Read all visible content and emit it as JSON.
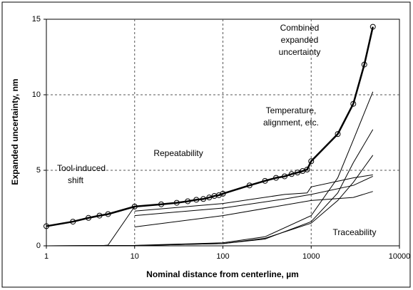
{
  "chart_data": {
    "type": "line",
    "xscale": "log",
    "xlabel": "Nominal distance from centerline, µm",
    "ylabel": "Expanded uncertainty, nm",
    "xlim": [
      1,
      10000
    ],
    "xticks": [
      1,
      10,
      100,
      1000,
      10000
    ],
    "ylim": [
      0,
      15
    ],
    "yticks": [
      0,
      5,
      10,
      15
    ],
    "grid": true,
    "annotations": {
      "combined": [
        "Combined",
        "expanded",
        "uncertainty"
      ],
      "temperature": [
        "Temperature,",
        "alignment, etc."
      ],
      "repeatability": [
        "Repeatability"
      ],
      "tool": [
        "Tool-induced",
        "shift"
      ],
      "traceability": [
        "Traceability"
      ]
    },
    "series": [
      {
        "color": "#000",
        "markers": true,
        "width": 2.5,
        "x": [
          1,
          2,
          3,
          4,
          5,
          10,
          20,
          30,
          40,
          50,
          60,
          70,
          80,
          90,
          100,
          200,
          300,
          400,
          500,
          600,
          700,
          800,
          900,
          1000,
          2000,
          3000,
          4000,
          5000
        ],
        "values": [
          1.3,
          1.6,
          1.85,
          2.0,
          2.1,
          2.6,
          2.75,
          2.85,
          2.95,
          3.05,
          3.1,
          3.2,
          3.3,
          3.35,
          3.45,
          4.0,
          4.3,
          4.5,
          4.6,
          4.75,
          4.85,
          4.95,
          5.05,
          5.6,
          7.4,
          9.4,
          12.0,
          14.5
        ]
      },
      {
        "color": "#000",
        "markers": false,
        "width": 1,
        "x": [
          1,
          10,
          100,
          300,
          1000,
          2000,
          3000,
          5000
        ],
        "values": [
          0,
          0.03,
          0.2,
          0.6,
          2.0,
          4.5,
          7.0,
          10.2
        ]
      },
      {
        "color": "#000",
        "markers": false,
        "width": 1,
        "x": [
          1,
          10,
          100,
          300,
          1000,
          2000,
          3000,
          5000
        ],
        "values": [
          0,
          0.02,
          0.15,
          0.45,
          1.6,
          3.5,
          5.5,
          7.7
        ]
      },
      {
        "color": "#000",
        "markers": false,
        "width": 1,
        "x": [
          1,
          10,
          100,
          300,
          1000,
          2000,
          3000,
          5000
        ],
        "values": [
          0,
          0.02,
          0.15,
          0.5,
          1.5,
          3.0,
          4.2,
          6.0
        ]
      },
      {
        "color": "#000",
        "markers": false,
        "width": 1,
        "x": [
          1,
          4,
          5,
          10
        ],
        "values": [
          0,
          0,
          0.05,
          2.6
        ]
      },
      {
        "color": "#000",
        "markers": false,
        "width": 1,
        "x": [
          10,
          100,
          1000,
          3000,
          5000
        ],
        "values": [
          1.25,
          2.0,
          3.0,
          3.2,
          3.6
        ]
      },
      {
        "color": "#000",
        "markers": false,
        "width": 1,
        "x": [
          10,
          100,
          500,
          900,
          1000,
          3000,
          5000
        ],
        "values": [
          2.3,
          2.8,
          3.4,
          3.5,
          3.9,
          4.5,
          4.7
        ]
      },
      {
        "color": "#000",
        "markers": false,
        "width": 1,
        "x": [
          10,
          100,
          500,
          1000,
          3000,
          5000
        ],
        "values": [
          2.0,
          2.5,
          3.1,
          3.4,
          4.0,
          4.6
        ]
      }
    ]
  }
}
